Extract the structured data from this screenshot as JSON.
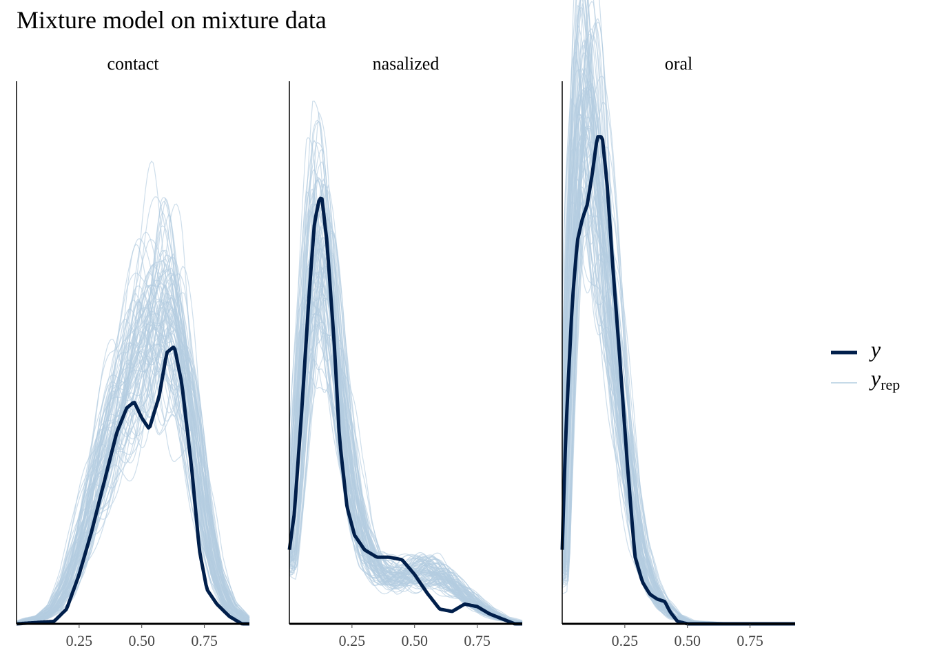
{
  "title": "Mixture model on mixture data",
  "colors": {
    "y": "#011f4b",
    "yrep": "#b3cde0"
  },
  "legend": {
    "position": "right",
    "items": [
      {
        "series": "y",
        "label": "y"
      },
      {
        "series": "yrep",
        "label": "y",
        "subscript": "rep"
      }
    ]
  },
  "chart_data": {
    "type": "line",
    "subtype": "posterior predictive density overlay",
    "xlim": [
      0.0,
      0.93
    ],
    "x_ticks": [
      0.25,
      0.5,
      0.75
    ],
    "x_tick_labels": [
      "0.25",
      "0.50",
      "0.75"
    ],
    "shared_y": true,
    "ylim": [
      0,
      4.4
    ],
    "y_axis_labels": "none",
    "grid": false,
    "n_yrep_draws": 80,
    "panels": [
      {
        "label": "contact",
        "y_density": [
          [
            0.0,
            0.0
          ],
          [
            0.15,
            0.02
          ],
          [
            0.2,
            0.12
          ],
          [
            0.25,
            0.4
          ],
          [
            0.3,
            0.75
          ],
          [
            0.35,
            1.15
          ],
          [
            0.4,
            1.55
          ],
          [
            0.44,
            1.75
          ],
          [
            0.47,
            1.8
          ],
          [
            0.5,
            1.67
          ],
          [
            0.53,
            1.58
          ],
          [
            0.57,
            1.85
          ],
          [
            0.6,
            2.2
          ],
          [
            0.63,
            2.25
          ],
          [
            0.66,
            1.95
          ],
          [
            0.7,
            1.25
          ],
          [
            0.73,
            0.6
          ],
          [
            0.76,
            0.28
          ],
          [
            0.8,
            0.16
          ],
          [
            0.85,
            0.06
          ],
          [
            0.9,
            0.0
          ]
        ],
        "yrep_mean_density": [
          [
            0.0,
            0.0
          ],
          [
            0.05,
            0.03
          ],
          [
            0.1,
            0.05
          ],
          [
            0.15,
            0.12
          ],
          [
            0.2,
            0.3
          ],
          [
            0.25,
            0.6
          ],
          [
            0.3,
            0.95
          ],
          [
            0.35,
            1.3
          ],
          [
            0.4,
            1.65
          ],
          [
            0.45,
            1.95
          ],
          [
            0.5,
            2.2
          ],
          [
            0.55,
            2.4
          ],
          [
            0.6,
            2.45
          ],
          [
            0.65,
            2.15
          ],
          [
            0.7,
            1.55
          ],
          [
            0.75,
            0.85
          ],
          [
            0.8,
            0.38
          ],
          [
            0.85,
            0.14
          ],
          [
            0.9,
            0.05
          ],
          [
            0.93,
            0.02
          ]
        ],
        "yrep_peak_range": [
          2.1,
          3.0
        ]
      },
      {
        "label": "nasalized",
        "y_density": [
          [
            0.0,
            0.6
          ],
          [
            0.02,
            0.9
          ],
          [
            0.05,
            1.75
          ],
          [
            0.08,
            2.7
          ],
          [
            0.1,
            3.25
          ],
          [
            0.12,
            3.45
          ],
          [
            0.13,
            3.45
          ],
          [
            0.15,
            3.1
          ],
          [
            0.18,
            2.25
          ],
          [
            0.2,
            1.5
          ],
          [
            0.23,
            0.95
          ],
          [
            0.26,
            0.72
          ],
          [
            0.3,
            0.6
          ],
          [
            0.35,
            0.54
          ],
          [
            0.4,
            0.54
          ],
          [
            0.45,
            0.52
          ],
          [
            0.5,
            0.4
          ],
          [
            0.55,
            0.25
          ],
          [
            0.6,
            0.12
          ],
          [
            0.65,
            0.1
          ],
          [
            0.7,
            0.16
          ],
          [
            0.75,
            0.14
          ],
          [
            0.8,
            0.08
          ],
          [
            0.85,
            0.04
          ],
          [
            0.9,
            0.0
          ]
        ],
        "yrep_mean_density": [
          [
            0.0,
            0.5
          ],
          [
            0.03,
            1.3
          ],
          [
            0.06,
            2.2
          ],
          [
            0.09,
            2.85
          ],
          [
            0.12,
            3.0
          ],
          [
            0.15,
            2.8
          ],
          [
            0.18,
            2.3
          ],
          [
            0.22,
            1.6
          ],
          [
            0.26,
            1.0
          ],
          [
            0.3,
            0.65
          ],
          [
            0.35,
            0.45
          ],
          [
            0.4,
            0.38
          ],
          [
            0.45,
            0.38
          ],
          [
            0.5,
            0.4
          ],
          [
            0.55,
            0.42
          ],
          [
            0.6,
            0.4
          ],
          [
            0.65,
            0.33
          ],
          [
            0.7,
            0.24
          ],
          [
            0.75,
            0.15
          ],
          [
            0.8,
            0.09
          ],
          [
            0.85,
            0.04
          ],
          [
            0.9,
            0.02
          ],
          [
            0.93,
            0.01
          ]
        ],
        "yrep_peak_range": [
          2.6,
          3.5
        ]
      },
      {
        "label": "oral",
        "y_density": [
          [
            0.0,
            0.6
          ],
          [
            0.01,
            1.3
          ],
          [
            0.02,
            1.8
          ],
          [
            0.04,
            2.6
          ],
          [
            0.06,
            3.1
          ],
          [
            0.08,
            3.28
          ],
          [
            0.1,
            3.4
          ],
          [
            0.12,
            3.65
          ],
          [
            0.14,
            3.95
          ],
          [
            0.16,
            3.95
          ],
          [
            0.18,
            3.55
          ],
          [
            0.2,
            2.95
          ],
          [
            0.23,
            2.15
          ],
          [
            0.26,
            1.3
          ],
          [
            0.29,
            0.55
          ],
          [
            0.32,
            0.34
          ],
          [
            0.35,
            0.24
          ],
          [
            0.38,
            0.2
          ],
          [
            0.41,
            0.18
          ],
          [
            0.43,
            0.1
          ],
          [
            0.46,
            0.02
          ],
          [
            0.5,
            0.0
          ],
          [
            0.93,
            0.0
          ]
        ],
        "yrep_mean_density": [
          [
            0.0,
            0.4
          ],
          [
            0.02,
            1.7
          ],
          [
            0.04,
            3.0
          ],
          [
            0.06,
            3.8
          ],
          [
            0.08,
            4.1
          ],
          [
            0.1,
            4.05
          ],
          [
            0.12,
            3.85
          ],
          [
            0.14,
            3.6
          ],
          [
            0.17,
            3.1
          ],
          [
            0.2,
            2.55
          ],
          [
            0.23,
            1.95
          ],
          [
            0.26,
            1.4
          ],
          [
            0.29,
            0.9
          ],
          [
            0.32,
            0.55
          ],
          [
            0.36,
            0.3
          ],
          [
            0.4,
            0.16
          ],
          [
            0.45,
            0.06
          ],
          [
            0.5,
            0.02
          ],
          [
            0.6,
            0.01
          ],
          [
            0.7,
            0.0
          ],
          [
            0.93,
            0.0
          ]
        ],
        "yrep_peak_range": [
          3.7,
          4.4
        ]
      }
    ]
  }
}
